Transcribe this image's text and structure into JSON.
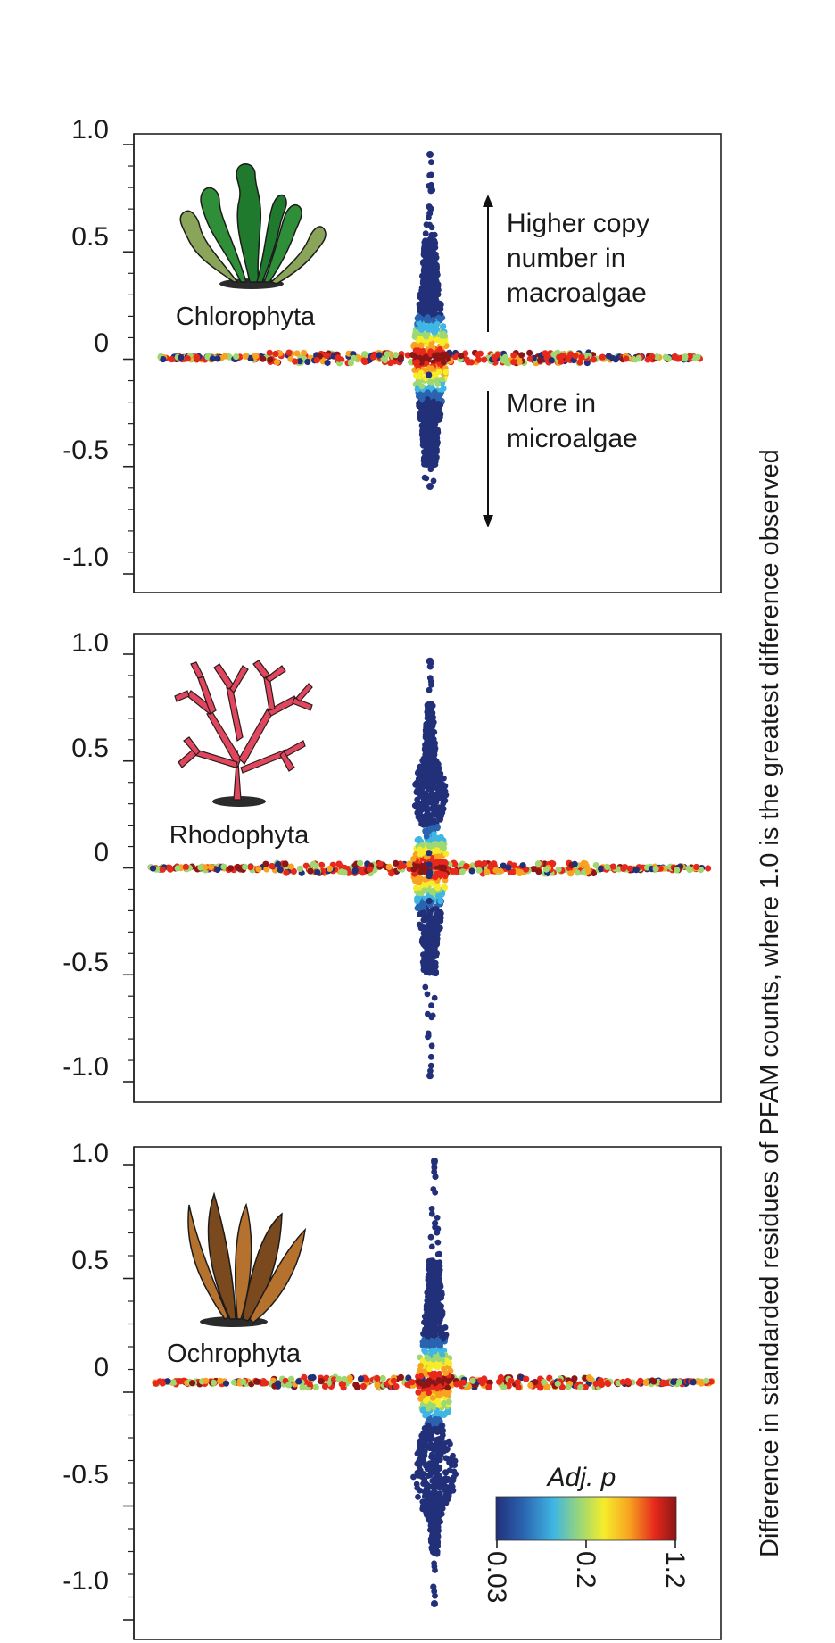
{
  "chart_data": {
    "type": "scatter",
    "ylabel": "Difference  in standarded residues of PFAM counts, where 1.0 is the greatest difference observed",
    "ylim": [
      -1.0,
      1.0
    ],
    "yticks": [
      "1.0",
      "0.5",
      "0",
      "-0.5",
      "-1.0"
    ],
    "colorbar": {
      "title": "Adj. p",
      "ticks": [
        "0.03",
        "0.2",
        "1.2"
      ],
      "colors": [
        "#22307a",
        "#2a63b0",
        "#3fb6e3",
        "#9ed873",
        "#f6ec2a",
        "#f7a321",
        "#e6291c",
        "#8c1515"
      ]
    },
    "panels": [
      {
        "taxon": "Chlorophyta",
        "vertical_extent": [
          -0.6,
          0.95
        ],
        "core_extent": [
          -0.5,
          0.55
        ],
        "annotations": {
          "up": "Higher copy\nnumber in\nmacroalgae",
          "down": "More in\nmicroalgae"
        }
      },
      {
        "taxon": "Rhodophyta",
        "vertical_extent": [
          -0.98,
          0.98
        ],
        "core_extent": [
          -0.5,
          0.78
        ]
      },
      {
        "taxon": "Ochrophyta",
        "vertical_extent": [
          -1.0,
          1.0
        ],
        "core_extent": [
          -0.78,
          0.55
        ]
      }
    ]
  }
}
